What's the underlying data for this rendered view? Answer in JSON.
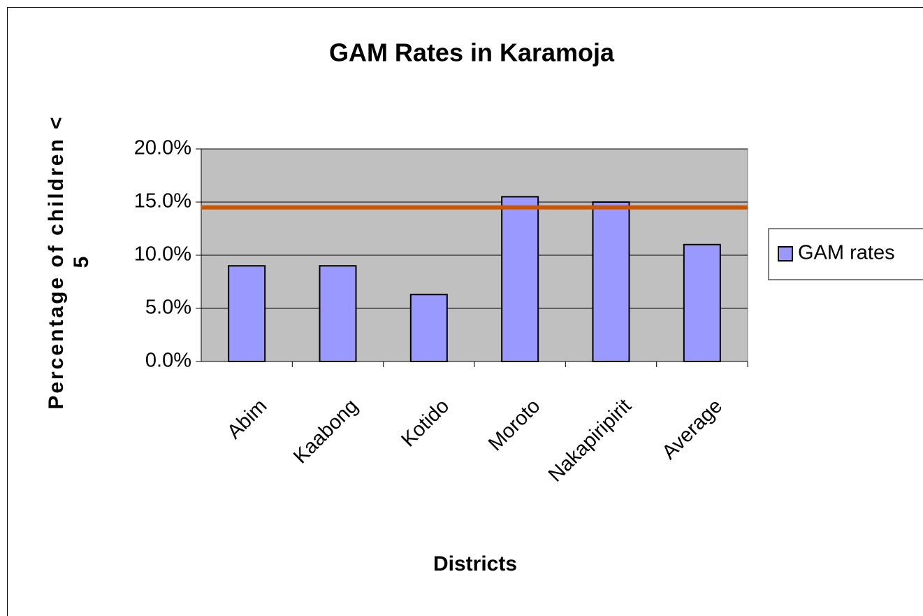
{
  "chart_data": {
    "type": "bar",
    "title": "GAM Rates in Karamoja",
    "xlabel": "Districts",
    "ylabel": [
      "Percentage of children <",
      "5"
    ],
    "categories": [
      "Abim",
      "Kaabong",
      "Kotido",
      "Moroto",
      "Nakapiripirit",
      "Average"
    ],
    "series": [
      {
        "name": "GAM rates",
        "color": "#9999ff",
        "values": [
          9.0,
          9.0,
          6.3,
          15.5,
          15.0,
          11.0
        ]
      }
    ],
    "reference_line": {
      "value": 14.5,
      "color": "#cc5500"
    },
    "ylim": [
      0,
      20
    ],
    "yticks": [
      {
        "value": 0,
        "label": "0.0%"
      },
      {
        "value": 5,
        "label": "5.0%"
      },
      {
        "value": 10,
        "label": "10.0%"
      },
      {
        "value": 15,
        "label": "15.0%"
      },
      {
        "value": 20,
        "label": "20.0%"
      }
    ],
    "grid": true,
    "plot_background": "#c0c0c0",
    "legend": "right"
  }
}
